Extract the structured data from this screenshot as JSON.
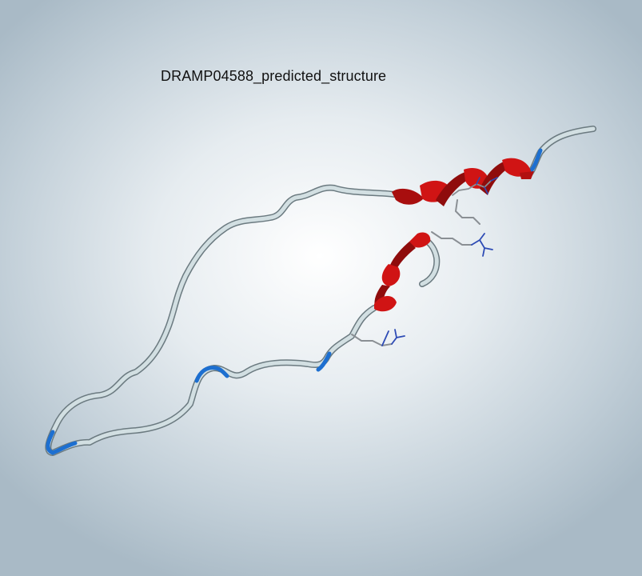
{
  "viewer": {
    "title": "DRAMP04588_predicted_structure"
  },
  "colors": {
    "background_center": "#ffffff",
    "background_edge": "#a9bac6",
    "coil": "#d2dfe2",
    "helix": "#d01414",
    "turn_highlight": "#1d6fd0",
    "side_chain_carbon": "#8a8f94",
    "side_chain_nitrogen": "#2d4bb5"
  },
  "structure": {
    "representation": "ribbon",
    "secondary_structure": [
      "coil",
      "alpha-helix",
      "coil",
      "alpha-helix",
      "coil"
    ],
    "shown_side_chains": [
      "arginine",
      "arginine",
      "arginine",
      "glutamate"
    ]
  }
}
